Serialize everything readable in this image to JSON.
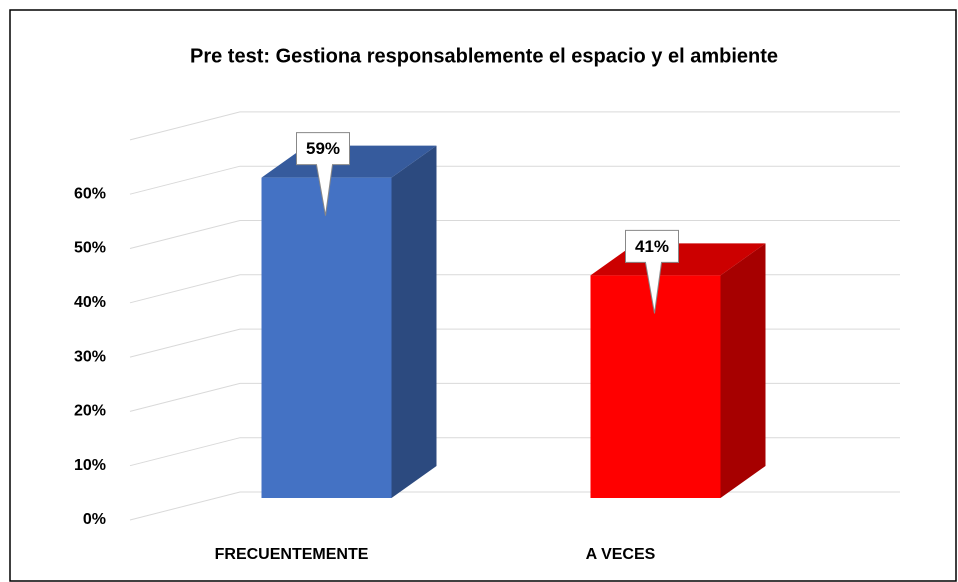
{
  "chart_data": {
    "type": "bar3d",
    "title": "Pre test: Gestiona responsablemente el espacio y el ambiente",
    "categories": [
      "FRECUENTEMENTE",
      "A VECES"
    ],
    "values": [
      59,
      41
    ],
    "value_labels": [
      "59%",
      "41%"
    ],
    "colors": [
      "#4472c4",
      "#ff0000"
    ],
    "ylim": [
      0,
      70
    ],
    "yticks": [
      {
        "value": 0,
        "label": "0%"
      },
      {
        "value": 10,
        "label": "10%"
      },
      {
        "value": 20,
        "label": "20%"
      },
      {
        "value": 30,
        "label": "30%"
      },
      {
        "value": 40,
        "label": "40%"
      },
      {
        "value": 50,
        "label": "50%"
      },
      {
        "value": 60,
        "label": "60%"
      }
    ],
    "grid": true
  }
}
